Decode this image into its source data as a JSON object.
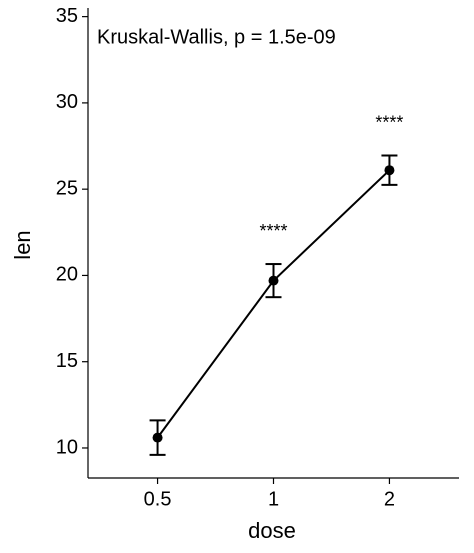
{
  "chart_data": {
    "type": "line",
    "annotation": "Kruskal-Wallis, p = 1.5e-09",
    "x_label": "dose",
    "y_label": "len",
    "categories": [
      "0.5",
      "1",
      "2"
    ],
    "series": [
      {
        "name": "len",
        "color": "#000000",
        "values": [
          10.6,
          19.7,
          26.1
        ],
        "errors": [
          1.0,
          0.96,
          0.85
        ]
      }
    ],
    "significance": [
      {
        "x": "1",
        "text": "****"
      },
      {
        "x": "2",
        "text": "****"
      }
    ],
    "ylim": [
      8.26,
      35.5
    ],
    "yticks": [
      10,
      15,
      20,
      25,
      30,
      35
    ],
    "grid": false
  }
}
